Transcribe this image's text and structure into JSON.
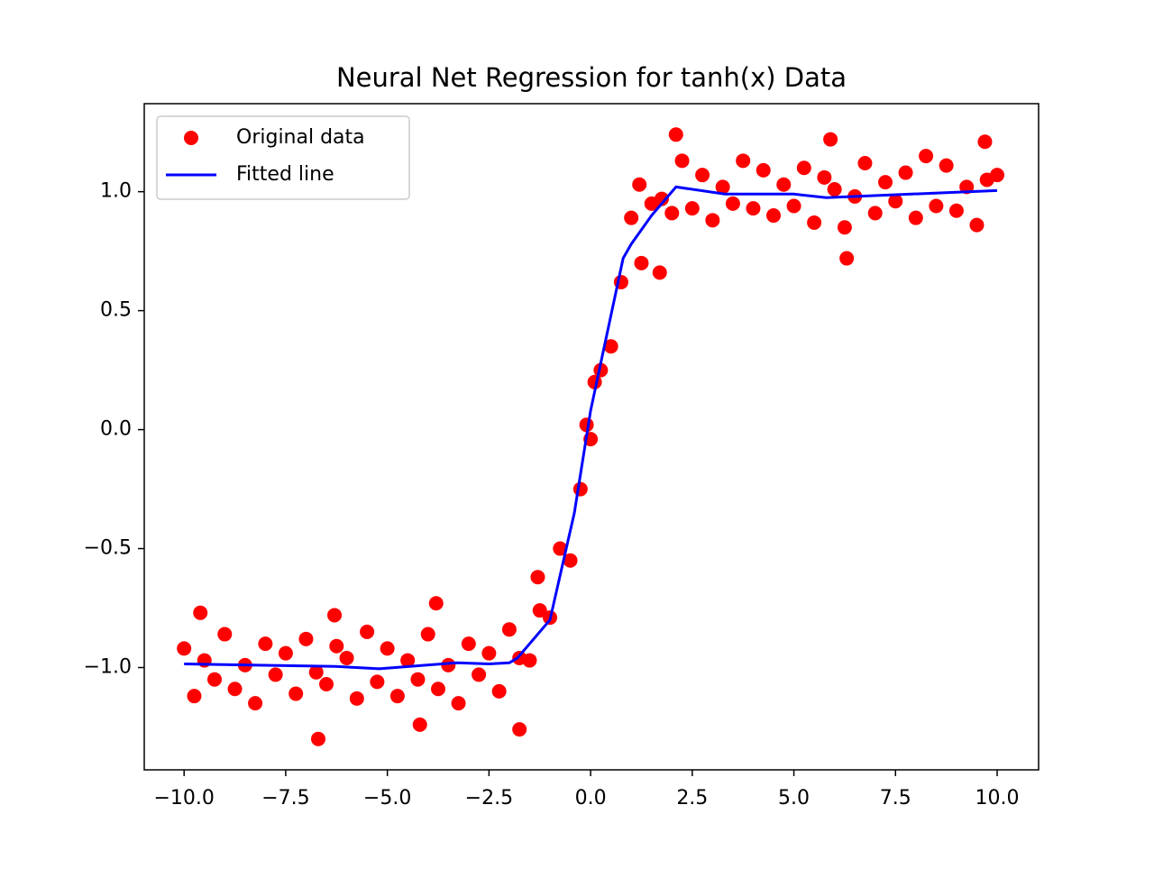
{
  "chart_data": {
    "type": "scatter",
    "title": "Neural Net Regression for tanh(x) Data",
    "xlim": [
      -10.98,
      11.02
    ],
    "ylim": [
      -1.43,
      1.37
    ],
    "xticks": [
      {
        "value": -10,
        "label": "−10.0"
      },
      {
        "value": -7.5,
        "label": "−7.5"
      },
      {
        "value": -5,
        "label": "−5.0"
      },
      {
        "value": -2.5,
        "label": "−2.5"
      },
      {
        "value": 0,
        "label": "0.0"
      },
      {
        "value": 2.5,
        "label": "2.5"
      },
      {
        "value": 5,
        "label": "5.0"
      },
      {
        "value": 7.5,
        "label": "7.5"
      },
      {
        "value": 10,
        "label": "10.0"
      }
    ],
    "yticks": [
      {
        "value": -1,
        "label": "−1.0"
      },
      {
        "value": -0.5,
        "label": "−0.5"
      },
      {
        "value": 0,
        "label": "0.0"
      },
      {
        "value": 0.5,
        "label": "0.5"
      },
      {
        "value": 1,
        "label": "1.0"
      }
    ],
    "legend": "upper left",
    "series": [
      {
        "name": "Original data",
        "color": "#ff0000",
        "kind": "points",
        "x": [
          -10,
          -9.75,
          -9.5,
          -9.25,
          -9,
          -8.75,
          -8.5,
          -8.25,
          -8,
          -7.75,
          -7.5,
          -7.25,
          -7,
          -6.75,
          -6.5,
          -6.25,
          -6,
          -5.75,
          -5.5,
          -5.25,
          -5,
          -4.75,
          -4.5,
          -4.25,
          -4,
          -3.75,
          -3.5,
          -3.25,
          -3,
          -2.75,
          -2.5,
          -2.25,
          -2,
          -1.75,
          -1.5,
          -1.25,
          -1,
          -0.75,
          -0.5,
          -0.25,
          0,
          0.25,
          0.5,
          0.75,
          1,
          1.25,
          1.5,
          1.75,
          2,
          2.25,
          2.5,
          2.75,
          3,
          3.25,
          3.5,
          3.75,
          4,
          4.25,
          4.5,
          4.75,
          5,
          5.25,
          5.5,
          5.75,
          6,
          6.25,
          6.5,
          6.75,
          7,
          7.25,
          7.5,
          7.75,
          8,
          8.25,
          8.5,
          8.75,
          9,
          9.25,
          9.5,
          9.75,
          10,
          -6.7,
          -1.75,
          -6.3,
          -3.8,
          2.1,
          6.3,
          1.7,
          9.7,
          -4.2,
          5.9,
          -9.6,
          1.2,
          -0.1,
          0.1,
          -1.3
        ],
        "values": [
          -0.92,
          -1.12,
          -0.97,
          -1.05,
          -0.86,
          -1.09,
          -0.99,
          -1.15,
          -0.9,
          -1.03,
          -0.94,
          -1.11,
          -0.88,
          -1.02,
          -1.07,
          -0.91,
          -0.96,
          -1.13,
          -0.85,
          -1.06,
          -0.92,
          -1.12,
          -0.97,
          -1.05,
          -0.86,
          -1.09,
          -0.99,
          -1.15,
          -0.9,
          -1.03,
          -0.94,
          -1.1,
          -0.84,
          -0.96,
          -0.97,
          -0.76,
          -0.79,
          -0.5,
          -0.55,
          -0.25,
          -0.04,
          0.25,
          0.35,
          0.62,
          0.89,
          0.7,
          0.95,
          0.97,
          0.91,
          1.13,
          0.93,
          1.07,
          0.88,
          1.02,
          0.95,
          1.13,
          0.93,
          1.09,
          0.9,
          1.03,
          0.94,
          1.1,
          0.87,
          1.06,
          1.01,
          0.85,
          0.98,
          1.12,
          0.91,
          1.04,
          0.96,
          1.08,
          0.89,
          1.15,
          0.94,
          1.11,
          0.92,
          1.02,
          0.86,
          1.05,
          1.07,
          -1.3,
          -1.26,
          -0.78,
          -0.73,
          1.24,
          0.72,
          0.66,
          1.21,
          -1.24,
          1.22,
          -0.77,
          1.03,
          0.02,
          0.2,
          -0.62
        ]
      },
      {
        "name": "Fitted line",
        "color": "#0000ff",
        "kind": "line",
        "x": [
          -10,
          -6.3,
          -5.2,
          -3.3,
          -2.5,
          -2,
          -1.8,
          -1,
          -0.4,
          0,
          0.4,
          0.8,
          1,
          1.5,
          2.1,
          3.3,
          5,
          5.8,
          10
        ],
        "values": [
          -0.985,
          -0.995,
          -1.005,
          -0.98,
          -0.985,
          -0.98,
          -0.96,
          -0.8,
          -0.35,
          0.08,
          0.4,
          0.72,
          0.78,
          0.9,
          1.02,
          0.99,
          0.99,
          0.975,
          1.005
        ]
      }
    ]
  }
}
